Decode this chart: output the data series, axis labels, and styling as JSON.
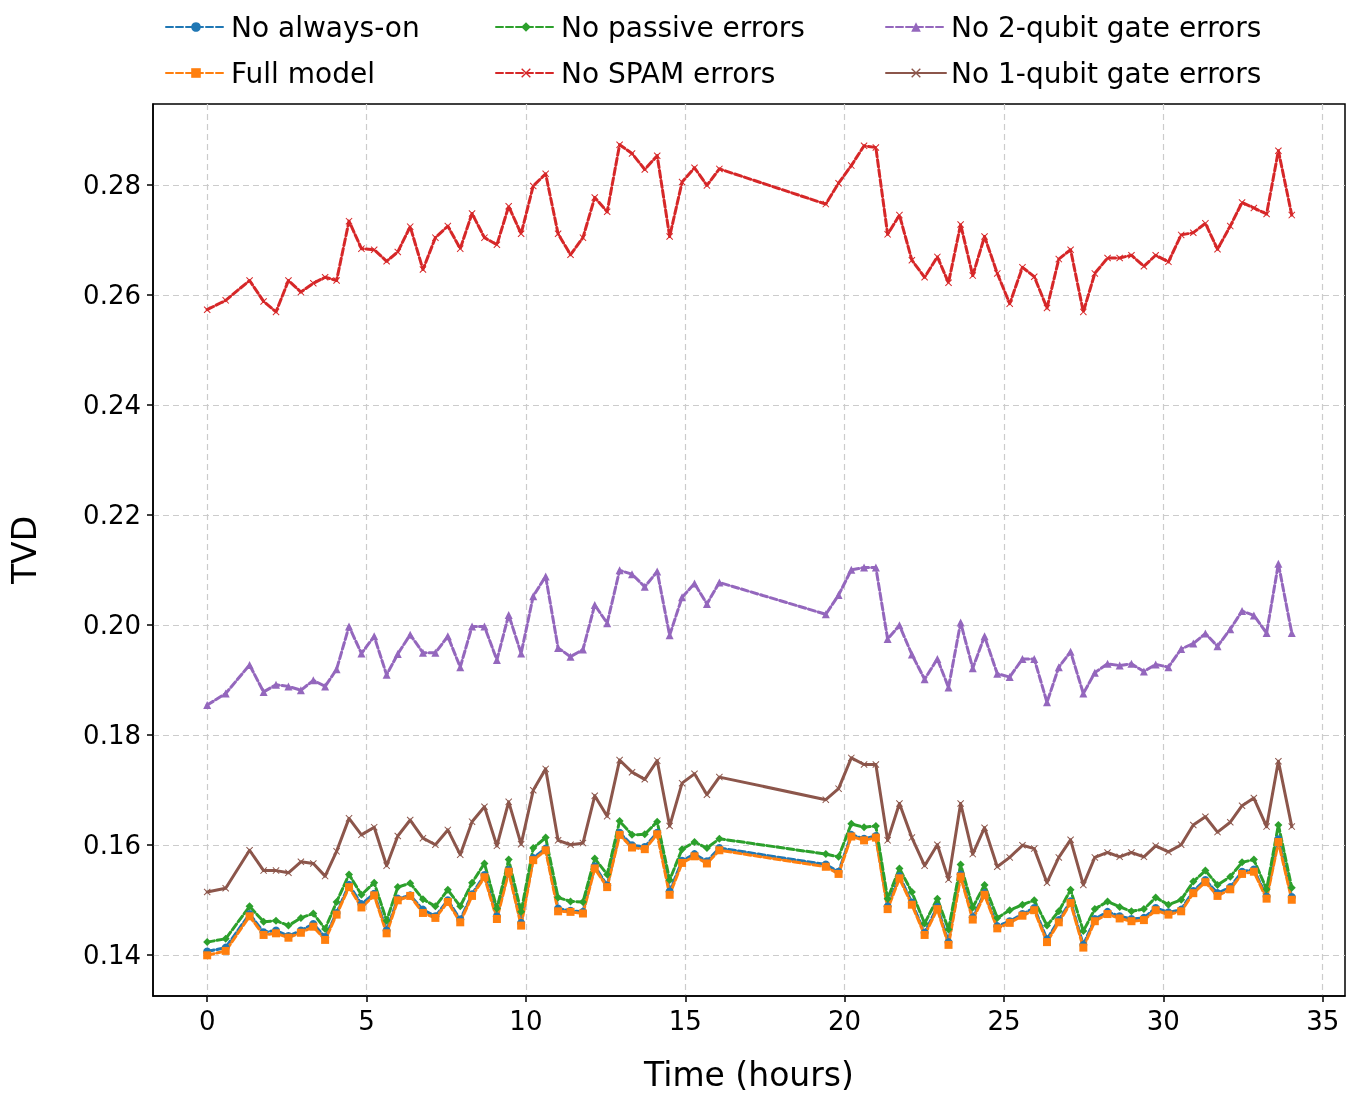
{
  "chart_data": {
    "type": "line",
    "xlabel": "Time (hours)",
    "ylabel": "TVD",
    "x": [
      0,
      0.58,
      1.33,
      1.77,
      2.16,
      2.55,
      2.94,
      3.33,
      3.7,
      4.06,
      4.45,
      4.84,
      5.24,
      5.63,
      5.98,
      6.37,
      6.77,
      7.16,
      7.55,
      7.94,
      8.31,
      8.7,
      9.09,
      9.46,
      9.85,
      10.23,
      10.62,
      11.01,
      11.4,
      11.79,
      12.16,
      12.55,
      12.94,
      13.33,
      13.73,
      14.12,
      14.51,
      14.9,
      15.29,
      15.68,
      16.07,
      19.41,
      19.81,
      20.21,
      20.61,
      20.98,
      21.35,
      21.72,
      22.11,
      22.51,
      22.91,
      23.26,
      23.64,
      24.02,
      24.39,
      24.79,
      25.18,
      25.58,
      25.95,
      26.35,
      26.72,
      27.09,
      27.49,
      27.85,
      28.25,
      28.63,
      29.0,
      29.39,
      29.76,
      30.16,
      30.56,
      30.94,
      31.32,
      31.7,
      32.1,
      32.47,
      32.84,
      33.24,
      33.61,
      34.03
    ],
    "series": [
      {
        "name": "No always-on",
        "color": "#1f77b4",
        "marker": "circle",
        "line_style": "dashed",
        "values": [
          0.1406,
          0.1413,
          0.1474,
          0.1441,
          0.1444,
          0.1434,
          0.1444,
          0.1456,
          0.1432,
          0.1476,
          0.1527,
          0.1492,
          0.1511,
          0.1444,
          0.1502,
          0.1508,
          0.1482,
          0.147,
          0.1499,
          0.1464,
          0.151,
          0.1545,
          0.147,
          0.1554,
          0.1458,
          0.1576,
          0.1593,
          0.1484,
          0.148,
          0.1478,
          0.1561,
          0.1526,
          0.1622,
          0.1599,
          0.1596,
          0.1622,
          0.1515,
          0.1571,
          0.1583,
          0.157,
          0.1594,
          0.1564,
          0.1551,
          0.1618,
          0.1611,
          0.1616,
          0.1488,
          0.1543,
          0.1495,
          0.144,
          0.1487,
          0.1423,
          0.1546,
          0.1468,
          0.1512,
          0.1452,
          0.1461,
          0.1474,
          0.1485,
          0.1428,
          0.1463,
          0.1497,
          0.1418,
          0.1465,
          0.1478,
          0.147,
          0.1465,
          0.1467,
          0.1485,
          0.1477,
          0.1482,
          0.1516,
          0.1536,
          0.1512,
          0.1523,
          0.1551,
          0.1555,
          0.1506,
          0.161,
          0.1505
        ]
      },
      {
        "name": "Full model",
        "color": "#ff7f0e",
        "marker": "square",
        "line_style": "dashed",
        "values": [
          0.1399,
          0.1407,
          0.147,
          0.1436,
          0.1439,
          0.1431,
          0.144,
          0.1451,
          0.1427,
          0.1473,
          0.1523,
          0.1486,
          0.1508,
          0.1439,
          0.1499,
          0.1507,
          0.1476,
          0.1467,
          0.1496,
          0.1459,
          0.1507,
          0.1541,
          0.1465,
          0.1551,
          0.1453,
          0.1572,
          0.159,
          0.1479,
          0.1478,
          0.1475,
          0.1557,
          0.1523,
          0.1618,
          0.1595,
          0.1592,
          0.1619,
          0.1509,
          0.1567,
          0.1579,
          0.1566,
          0.159,
          0.156,
          0.1547,
          0.1615,
          0.1608,
          0.1613,
          0.1483,
          0.1539,
          0.1491,
          0.1436,
          0.1483,
          0.1418,
          0.1542,
          0.1464,
          0.1509,
          0.1448,
          0.1458,
          0.1471,
          0.1481,
          0.1423,
          0.1459,
          0.1494,
          0.1413,
          0.1461,
          0.1474,
          0.1466,
          0.1461,
          0.1463,
          0.1481,
          0.1473,
          0.1479,
          0.1512,
          0.1532,
          0.1507,
          0.1519,
          0.1547,
          0.1551,
          0.1502,
          0.1605,
          0.15
        ]
      },
      {
        "name": "No passive errors",
        "color": "#2ca02c",
        "marker": "diamond",
        "line_style": "dashed",
        "values": [
          0.1423,
          0.1429,
          0.1488,
          0.146,
          0.1462,
          0.1453,
          0.1467,
          0.1475,
          0.1447,
          0.1496,
          0.1546,
          0.1509,
          0.1531,
          0.1462,
          0.1523,
          0.153,
          0.1501,
          0.1488,
          0.1518,
          0.1488,
          0.1531,
          0.1566,
          0.1484,
          0.1573,
          0.1478,
          0.1594,
          0.1613,
          0.1504,
          0.1497,
          0.1496,
          0.1575,
          0.1546,
          0.1643,
          0.1618,
          0.1619,
          0.1642,
          0.1536,
          0.1592,
          0.1605,
          0.1594,
          0.1611,
          0.1583,
          0.1578,
          0.1638,
          0.1632,
          0.1634,
          0.1502,
          0.1557,
          0.1514,
          0.1457,
          0.1502,
          0.1446,
          0.1564,
          0.1486,
          0.1527,
          0.1467,
          0.1481,
          0.1491,
          0.1499,
          0.1453,
          0.1479,
          0.1518,
          0.1443,
          0.1483,
          0.1497,
          0.1487,
          0.1479,
          0.1483,
          0.1504,
          0.1491,
          0.15,
          0.1533,
          0.1553,
          0.1527,
          0.1542,
          0.1568,
          0.1573,
          0.1519,
          0.1636,
          0.1522
        ]
      },
      {
        "name": "No SPAM errors",
        "color": "#d62728",
        "marker": "cross",
        "line_style": "dashed",
        "values": [
          0.2573,
          0.259,
          0.2626,
          0.2588,
          0.2569,
          0.2626,
          0.2605,
          0.2621,
          0.2632,
          0.2626,
          0.2734,
          0.2684,
          0.2682,
          0.2661,
          0.2678,
          0.2724,
          0.2646,
          0.2704,
          0.2725,
          0.2684,
          0.2748,
          0.2704,
          0.2691,
          0.2761,
          0.2711,
          0.2798,
          0.282,
          0.2711,
          0.2673,
          0.2704,
          0.2777,
          0.2751,
          0.2873,
          0.2857,
          0.2828,
          0.2853,
          0.2706,
          0.2805,
          0.2831,
          0.2799,
          0.2829,
          0.2765,
          0.2803,
          0.2835,
          0.2871,
          0.2868,
          0.271,
          0.2745,
          0.2663,
          0.2632,
          0.2669,
          0.2622,
          0.2728,
          0.2635,
          0.2706,
          0.2639,
          0.2584,
          0.265,
          0.2633,
          0.2576,
          0.2665,
          0.2682,
          0.2569,
          0.2639,
          0.2667,
          0.2667,
          0.2672,
          0.2652,
          0.2672,
          0.266,
          0.2709,
          0.2713,
          0.273,
          0.2683,
          0.2725,
          0.2768,
          0.2758,
          0.2747,
          0.2862,
          0.2745
        ]
      },
      {
        "name": "No 2-qubit gate errors",
        "color": "#9467bd",
        "marker": "triangle",
        "line_style": "dashed",
        "values": [
          0.1854,
          0.1875,
          0.1927,
          0.1878,
          0.1891,
          0.1888,
          0.1881,
          0.1899,
          0.1888,
          0.1919,
          0.1997,
          0.1948,
          0.1979,
          0.1909,
          0.1947,
          0.1982,
          0.1949,
          0.1949,
          0.1979,
          0.1923,
          0.1997,
          0.1997,
          0.1936,
          0.2018,
          0.1948,
          0.2052,
          0.2088,
          0.1958,
          0.1942,
          0.1955,
          0.2036,
          0.2003,
          0.2099,
          0.2092,
          0.2069,
          0.2097,
          0.1981,
          0.205,
          0.2075,
          0.2038,
          0.2077,
          0.2019,
          0.2054,
          0.21,
          0.2104,
          0.2104,
          0.1974,
          0.1999,
          0.1946,
          0.1901,
          0.1938,
          0.1886,
          0.2004,
          0.1921,
          0.1979,
          0.1911,
          0.1905,
          0.1938,
          0.1938,
          0.1859,
          0.1923,
          0.1951,
          0.1875,
          0.1913,
          0.1929,
          0.1926,
          0.1929,
          0.1915,
          0.1928,
          0.1923,
          0.1956,
          0.1966,
          0.1984,
          0.1961,
          0.1992,
          0.2025,
          0.2017,
          0.1985,
          0.2111,
          0.1985
        ]
      },
      {
        "name": "No 1-qubit gate errors",
        "color": "#8c564b",
        "marker": "cross",
        "line_style": "solid",
        "values": [
          0.1514,
          0.1521,
          0.159,
          0.1553,
          0.1553,
          0.1549,
          0.1569,
          0.1566,
          0.1543,
          0.1588,
          0.1648,
          0.1618,
          0.1632,
          0.1562,
          0.1616,
          0.1645,
          0.1612,
          0.16,
          0.1627,
          0.1582,
          0.1642,
          0.1669,
          0.1598,
          0.1678,
          0.1601,
          0.1699,
          0.1738,
          0.1608,
          0.16,
          0.1603,
          0.1689,
          0.1652,
          0.1754,
          0.1732,
          0.1719,
          0.1753,
          0.1634,
          0.1712,
          0.1729,
          0.1691,
          0.1723,
          0.1682,
          0.1702,
          0.1758,
          0.1746,
          0.1746,
          0.1608,
          0.1675,
          0.1613,
          0.1562,
          0.16,
          0.1537,
          0.1675,
          0.1583,
          0.1631,
          0.156,
          0.1577,
          0.1599,
          0.1593,
          0.1531,
          0.1577,
          0.1609,
          0.1527,
          0.1577,
          0.1586,
          0.1578,
          0.1586,
          0.1578,
          0.1598,
          0.1587,
          0.16,
          0.1636,
          0.1651,
          0.1623,
          0.1641,
          0.1671,
          0.1685,
          0.1633,
          0.1752,
          0.1633
        ]
      }
    ],
    "xlim": [
      -1.7,
      35.7
    ],
    "xticks": [
      0,
      5,
      10,
      15,
      20,
      25,
      30,
      35
    ],
    "ylim": [
      0.1325,
      0.2947
    ],
    "yticks": [
      0.14,
      0.16,
      0.18,
      {
        "value": 0.2,
        "label": "0.20"
      },
      0.22,
      0.24,
      0.26,
      0.28
    ],
    "grid": true,
    "legend": "top"
  }
}
